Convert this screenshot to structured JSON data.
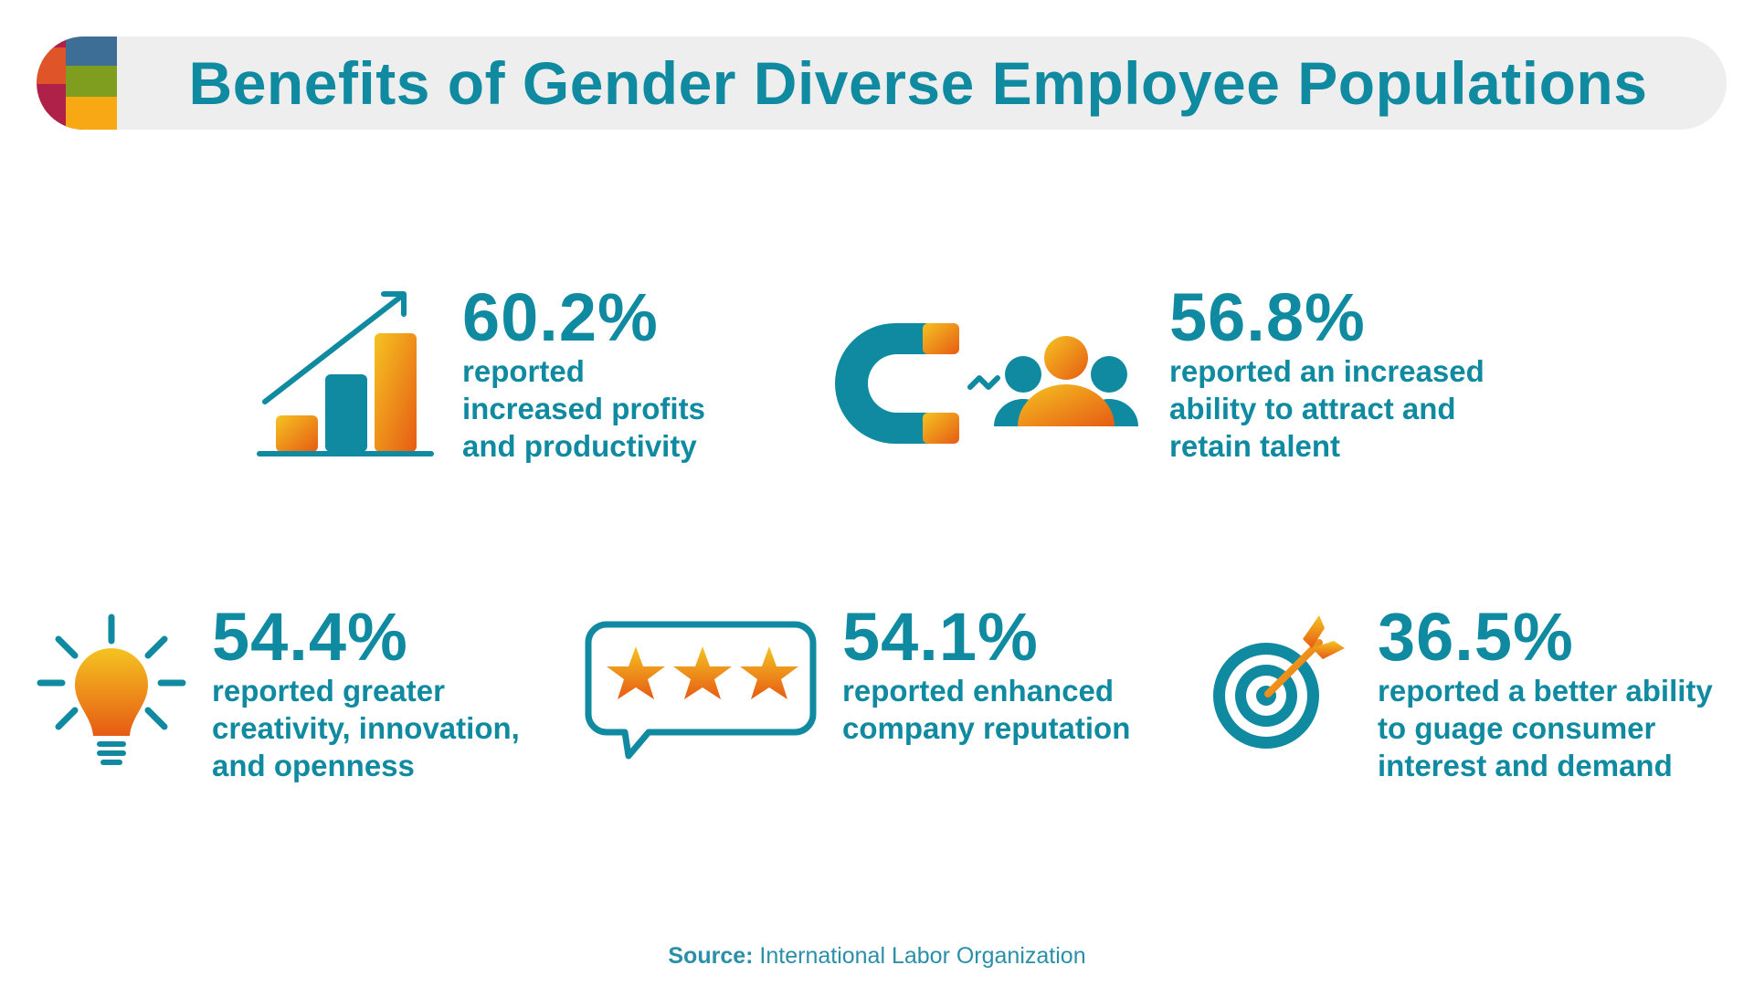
{
  "header": {
    "title": "Benefits of Gender Diverse Employee Populations",
    "logo_colors": [
      "#3d6e96",
      "#e0542a",
      "#7f9d1e",
      "#b02149",
      "#f8a812"
    ]
  },
  "colors": {
    "accent_teal": "#0f8aa1",
    "gradient_yellow": "#f5c321",
    "gradient_orange": "#e65b14"
  },
  "stats": [
    {
      "value": "60.2%",
      "lines": [
        "reported",
        "increased profits",
        "and productivity"
      ],
      "icon": "growth-chart-icon"
    },
    {
      "value": "56.8%",
      "lines": [
        "reported an increased",
        "ability to attract and",
        "retain talent"
      ],
      "icon": "magnet-people-icon"
    },
    {
      "value": "54.4%",
      "lines": [
        "reported greater",
        "creativity, innovation,",
        "and openness"
      ],
      "icon": "lightbulb-icon"
    },
    {
      "value": "54.1%",
      "lines": [
        "reported enhanced",
        "company reputation"
      ],
      "icon": "rating-stars-icon"
    },
    {
      "value": "36.5%",
      "lines": [
        "reported a better ability",
        "to guage consumer",
        "interest and demand"
      ],
      "icon": "target-icon"
    }
  ],
  "source": {
    "label": "Source:",
    "text": "International Labor Organization"
  }
}
